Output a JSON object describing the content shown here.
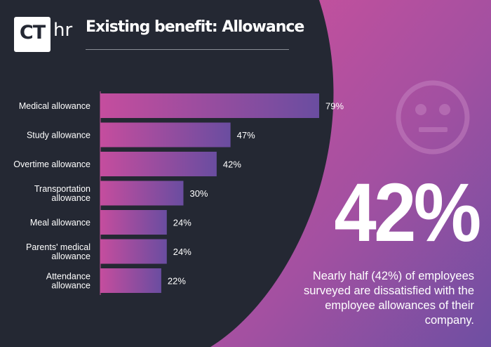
{
  "header": {
    "logo_ct": "CT",
    "logo_hr": "hr",
    "title": "Existing benefit: Allowance"
  },
  "chart_data": {
    "type": "bar",
    "orientation": "horizontal",
    "categories": [
      [
        "Medical allowance"
      ],
      [
        "Study allowance"
      ],
      [
        "Overtime allowance"
      ],
      [
        "Transportation",
        "allowance"
      ],
      [
        "Meal allowance"
      ],
      [
        "Parents' medical",
        "allowance"
      ],
      [
        "Attendance",
        "allowance"
      ]
    ],
    "values": [
      79,
      47,
      42,
      30,
      24,
      24,
      22
    ],
    "value_labels": [
      "79%",
      "47%",
      "42%",
      "30%",
      "24%",
      "24%",
      "22%"
    ],
    "unit": "%",
    "xlim": [
      0,
      79
    ],
    "grid": false,
    "legend": "none",
    "colors": {
      "bar_start": "#c54d9e",
      "bar_end": "#6a4da0",
      "bar_top": "#5a4ea1"
    }
  },
  "highlight": {
    "value": "42%",
    "description": "Nearly half (42%) of employees surveyed are dissatisfied with the employee allowances of their company."
  },
  "icons": {
    "mood": "neutral-face-icon"
  },
  "colors": {
    "background": "#242833",
    "gradient_start": "#c8509e",
    "gradient_end": "#6e4fa2",
    "text": "#ffffff"
  }
}
